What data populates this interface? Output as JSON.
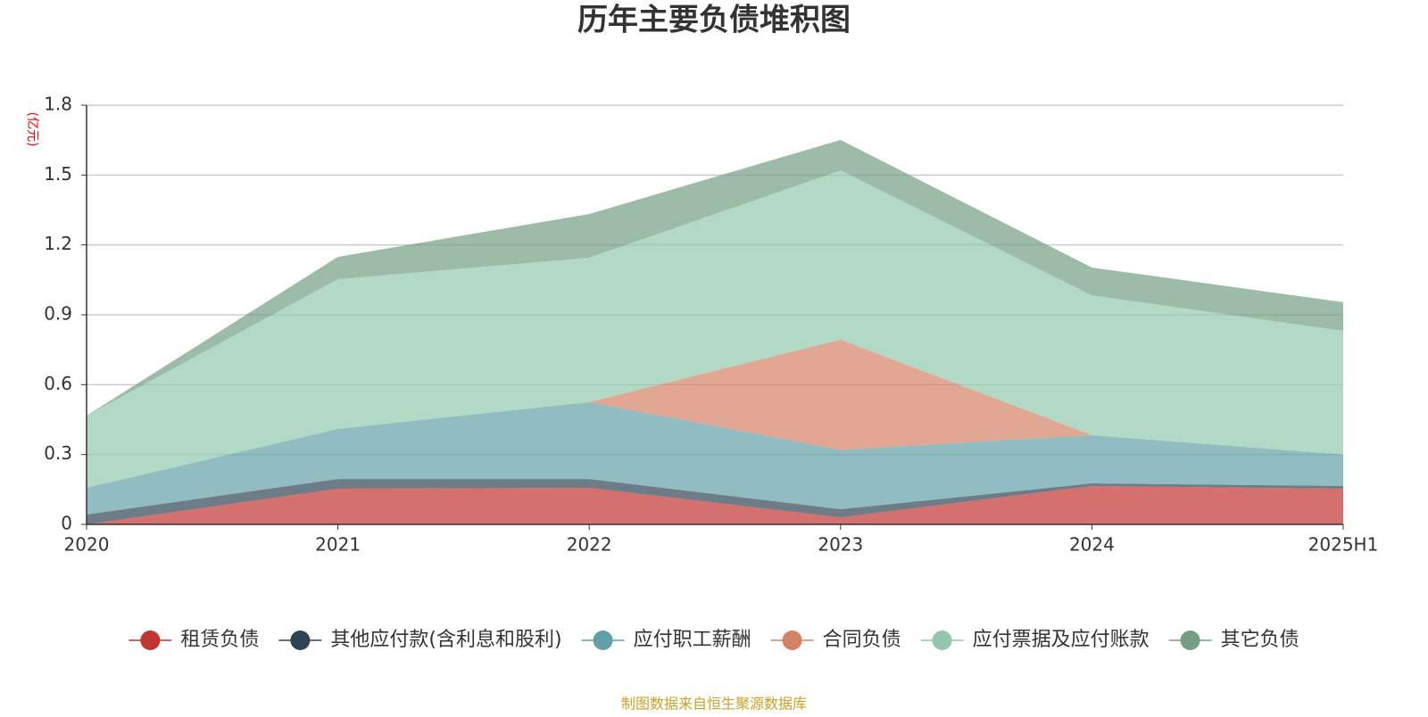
{
  "chart_data": {
    "type": "stacked-area",
    "title": "历年主要负债堆积图",
    "y_unit": "(亿元)",
    "source": "制图数据来自恒生聚源数据库",
    "categories": [
      "2020",
      "2021",
      "2022",
      "2023",
      "2024",
      "2025H1"
    ],
    "ylim": [
      0,
      1.8
    ],
    "yticks": [
      0,
      0.3,
      0.6,
      0.9,
      1.2,
      1.5,
      1.8
    ],
    "grid": true,
    "series": [
      {
        "name": "租赁负债",
        "color": "#c23531",
        "values": [
          0,
          0.153,
          0.157,
          0.03,
          0.165,
          0.153
        ]
      },
      {
        "name": "其他应付款(含利息和股利)",
        "color": "#2f4554",
        "values": [
          0.042,
          0.042,
          0.038,
          0.035,
          0.011,
          0.012
        ]
      },
      {
        "name": "应付职工薪酬",
        "color": "#61a0a8",
        "values": [
          0.115,
          0.215,
          0.33,
          0.255,
          0.207,
          0.135
        ]
      },
      {
        "name": "合同负债",
        "color": "#d48265",
        "values": [
          0,
          0,
          0,
          0.473,
          0,
          0
        ]
      },
      {
        "name": "应付票据及应付账款",
        "color": "#91c7ae",
        "values": [
          0.31,
          0.643,
          0.62,
          0.727,
          0.601,
          0.531
        ]
      },
      {
        "name": "其它负债",
        "color": "#749f83",
        "values": [
          0,
          0.096,
          0.188,
          0.131,
          0.119,
          0.123
        ]
      }
    ]
  }
}
